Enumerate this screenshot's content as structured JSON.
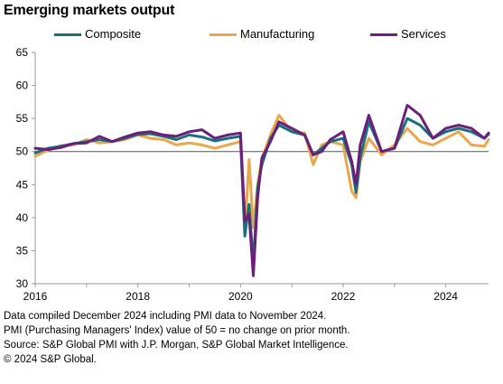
{
  "title": "Emerging markets output",
  "notes": [
    "Data compiled December 2024 including PMI data to November 2024.",
    "PMI (Purchasing Managers' Index) value of 50 = no change on prior month.",
    "Source: S&P Global PMI with J.P. Morgan, S&P Global Market Intelligence.",
    "© 2024 S&P Global."
  ],
  "chart_data": {
    "type": "line",
    "title": "Emerging markets output",
    "xlabel": "",
    "ylabel": "",
    "ylim": [
      30,
      65
    ],
    "yticks": [
      30,
      35,
      40,
      45,
      50,
      55,
      60,
      65
    ],
    "xticks": [
      "2016",
      "2018",
      "2020",
      "2022",
      "2024"
    ],
    "xlim": [
      "2016-01",
      "2024-11"
    ],
    "reference_line": 50,
    "grid": false,
    "legend_position": "top",
    "series": [
      {
        "name": "Composite",
        "color": "#17707c",
        "x": [
          "2016-01",
          "2016-04",
          "2016-07",
          "2016-10",
          "2017-01",
          "2017-04",
          "2017-07",
          "2017-10",
          "2018-01",
          "2018-04",
          "2018-07",
          "2018-10",
          "2019-01",
          "2019-04",
          "2019-07",
          "2019-10",
          "2020-01",
          "2020-02",
          "2020-03",
          "2020-04",
          "2020-05",
          "2020-06",
          "2020-08",
          "2020-10",
          "2021-01",
          "2021-04",
          "2021-06",
          "2021-08",
          "2021-10",
          "2022-01",
          "2022-03",
          "2022-04",
          "2022-05",
          "2022-07",
          "2022-10",
          "2023-01",
          "2023-04",
          "2023-07",
          "2023-10",
          "2024-01",
          "2024-04",
          "2024-07",
          "2024-10",
          "2024-11"
        ],
        "values": [
          49.8,
          50.5,
          50.8,
          51.2,
          51.5,
          51.8,
          51.5,
          52.0,
          52.6,
          52.7,
          52.3,
          51.8,
          52.5,
          52.2,
          51.6,
          52.0,
          52.3,
          37.2,
          42.0,
          33.0,
          44.5,
          48.0,
          52.0,
          54.0,
          53.0,
          52.5,
          49.5,
          50.5,
          51.5,
          52.0,
          48.0,
          43.8,
          49.0,
          54.5,
          50.0,
          50.5,
          55.0,
          54.0,
          52.0,
          53.0,
          53.5,
          53.0,
          52.0,
          52.6
        ]
      },
      {
        "name": "Manufacturing",
        "color": "#eaa64c",
        "x": [
          "2016-01",
          "2016-04",
          "2016-07",
          "2016-10",
          "2017-01",
          "2017-04",
          "2017-07",
          "2017-10",
          "2018-01",
          "2018-04",
          "2018-07",
          "2018-10",
          "2019-01",
          "2019-04",
          "2019-07",
          "2019-10",
          "2020-01",
          "2020-02",
          "2020-03",
          "2020-04",
          "2020-05",
          "2020-06",
          "2020-08",
          "2020-10",
          "2021-01",
          "2021-04",
          "2021-06",
          "2021-08",
          "2021-10",
          "2022-01",
          "2022-03",
          "2022-04",
          "2022-05",
          "2022-07",
          "2022-10",
          "2023-01",
          "2023-04",
          "2023-07",
          "2023-10",
          "2024-01",
          "2024-04",
          "2024-07",
          "2024-10",
          "2024-11"
        ],
        "values": [
          49.3,
          50.2,
          50.9,
          51.0,
          51.8,
          51.3,
          51.5,
          51.8,
          52.5,
          52.0,
          51.8,
          51.0,
          51.3,
          51.0,
          50.5,
          51.0,
          51.5,
          37.5,
          48.8,
          38.5,
          45.0,
          49.0,
          52.5,
          55.5,
          53.0,
          52.8,
          48.0,
          51.0,
          51.5,
          51.0,
          44.0,
          43.0,
          48.5,
          52.0,
          49.5,
          51.0,
          53.5,
          51.5,
          51.0,
          52.0,
          53.0,
          51.0,
          50.8,
          51.8
        ]
      },
      {
        "name": "Services",
        "color": "#6b1f7a",
        "x": [
          "2016-01",
          "2016-04",
          "2016-07",
          "2016-10",
          "2017-01",
          "2017-04",
          "2017-07",
          "2017-10",
          "2018-01",
          "2018-04",
          "2018-07",
          "2018-10",
          "2019-01",
          "2019-04",
          "2019-07",
          "2019-10",
          "2020-01",
          "2020-02",
          "2020-03",
          "2020-04",
          "2020-05",
          "2020-06",
          "2020-08",
          "2020-10",
          "2021-01",
          "2021-04",
          "2021-06",
          "2021-08",
          "2021-10",
          "2022-01",
          "2022-03",
          "2022-04",
          "2022-05",
          "2022-07",
          "2022-10",
          "2023-01",
          "2023-04",
          "2023-07",
          "2023-10",
          "2024-01",
          "2024-04",
          "2024-07",
          "2024-10",
          "2024-11"
        ],
        "values": [
          50.5,
          50.3,
          50.6,
          51.2,
          51.3,
          52.3,
          51.5,
          52.2,
          52.8,
          53.0,
          52.5,
          52.3,
          53.0,
          53.3,
          52.0,
          52.5,
          52.8,
          39.5,
          40.5,
          31.2,
          43.0,
          49.0,
          51.5,
          54.5,
          53.5,
          52.5,
          49.5,
          50.0,
          51.8,
          53.0,
          48.5,
          45.0,
          51.0,
          55.5,
          50.0,
          50.5,
          57.0,
          55.5,
          52.0,
          53.5,
          54.0,
          53.5,
          52.0,
          52.8
        ]
      }
    ]
  }
}
